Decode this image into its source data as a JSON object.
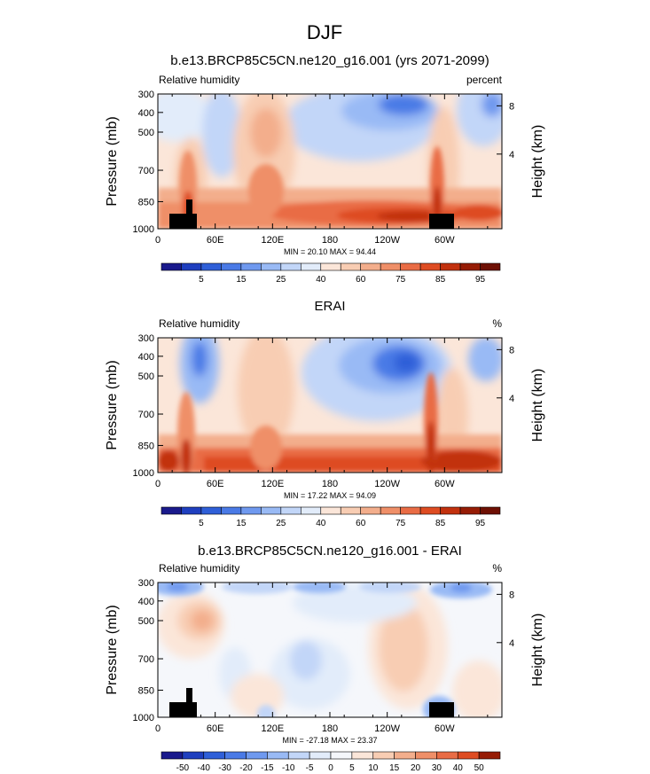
{
  "figure": {
    "title": "DJF"
  },
  "chart_data": [
    {
      "type": "heatmap",
      "title": "b.e13.BRCP85C5CN.ne120_g16.001 (yrs 2071-2099)",
      "left_label": "Relative humidity",
      "right_label": "percent",
      "ylabel": "Pressure (mb)",
      "y2label": "Height (km)",
      "x_ticks": [
        "0",
        "60E",
        "120E",
        "180",
        "120W",
        "60W"
      ],
      "y_ticks": [
        "300",
        "400",
        "500",
        "700",
        "850",
        "1000"
      ],
      "y2_ticks": [
        "8",
        "4"
      ],
      "min_label": "MIN = 20.10 MAX = 94.44",
      "colorbar_labels": [
        "5",
        "15",
        "25",
        "40",
        "60",
        "75",
        "85",
        "95"
      ],
      "colors": [
        "#1a1a8c",
        "#1f3fbf",
        "#2f5fd8",
        "#4a7ae6",
        "#6f99ef",
        "#99baf5",
        "#c2d6f8",
        "#e2ecfa",
        "#fbe6d9",
        "#f8cdb3",
        "#f3ae8c",
        "#ef8f68",
        "#e96c45",
        "#de4c22",
        "#c2310e",
        "#961c05",
        "#6e1004"
      ]
    },
    {
      "type": "heatmap",
      "title": "ERAI",
      "left_label": "Relative humidity",
      "right_label": "%",
      "ylabel": "Pressure (mb)",
      "y2label": "Height (km)",
      "x_ticks": [
        "0",
        "60E",
        "120E",
        "180",
        "120W",
        "60W"
      ],
      "y_ticks": [
        "300",
        "400",
        "500",
        "700",
        "850",
        "1000"
      ],
      "y2_ticks": [
        "8",
        "4"
      ],
      "min_label": "MIN = 17.22 MAX = 94.09",
      "colorbar_labels": [
        "5",
        "15",
        "25",
        "40",
        "60",
        "75",
        "85",
        "95"
      ],
      "colors": [
        "#1a1a8c",
        "#1f3fbf",
        "#2f5fd8",
        "#4a7ae6",
        "#6f99ef",
        "#99baf5",
        "#c2d6f8",
        "#e2ecfa",
        "#fbe6d9",
        "#f8cdb3",
        "#f3ae8c",
        "#ef8f68",
        "#e96c45",
        "#de4c22",
        "#c2310e",
        "#961c05",
        "#6e1004"
      ]
    },
    {
      "type": "heatmap",
      "title": "b.e13.BRCP85C5CN.ne120_g16.001 - ERAI",
      "left_label": "Relative humidity",
      "right_label": "%",
      "ylabel": "Pressure (mb)",
      "y2label": "Height (km)",
      "x_ticks": [
        "0",
        "60E",
        "120E",
        "180",
        "120W",
        "60W"
      ],
      "y_ticks": [
        "300",
        "400",
        "500",
        "700",
        "850",
        "1000"
      ],
      "y2_ticks": [
        "8",
        "4"
      ],
      "min_label": "MIN = -27.18 MAX = 23.37",
      "colorbar_labels": [
        "-50",
        "-40",
        "-30",
        "-20",
        "-15",
        "-10",
        "-5",
        "0",
        "5",
        "10",
        "15",
        "20",
        "30",
        "40",
        "50"
      ],
      "colors": [
        "#1a1a8c",
        "#1f3fbf",
        "#2f5fd8",
        "#4a7ae6",
        "#6f99ef",
        "#99baf5",
        "#c2d6f8",
        "#e2ecfa",
        "#f5f7fb",
        "#fbe6d9",
        "#f8cdb3",
        "#f3ae8c",
        "#ef8f68",
        "#e96c45",
        "#de4c22",
        "#961c05"
      ]
    }
  ]
}
